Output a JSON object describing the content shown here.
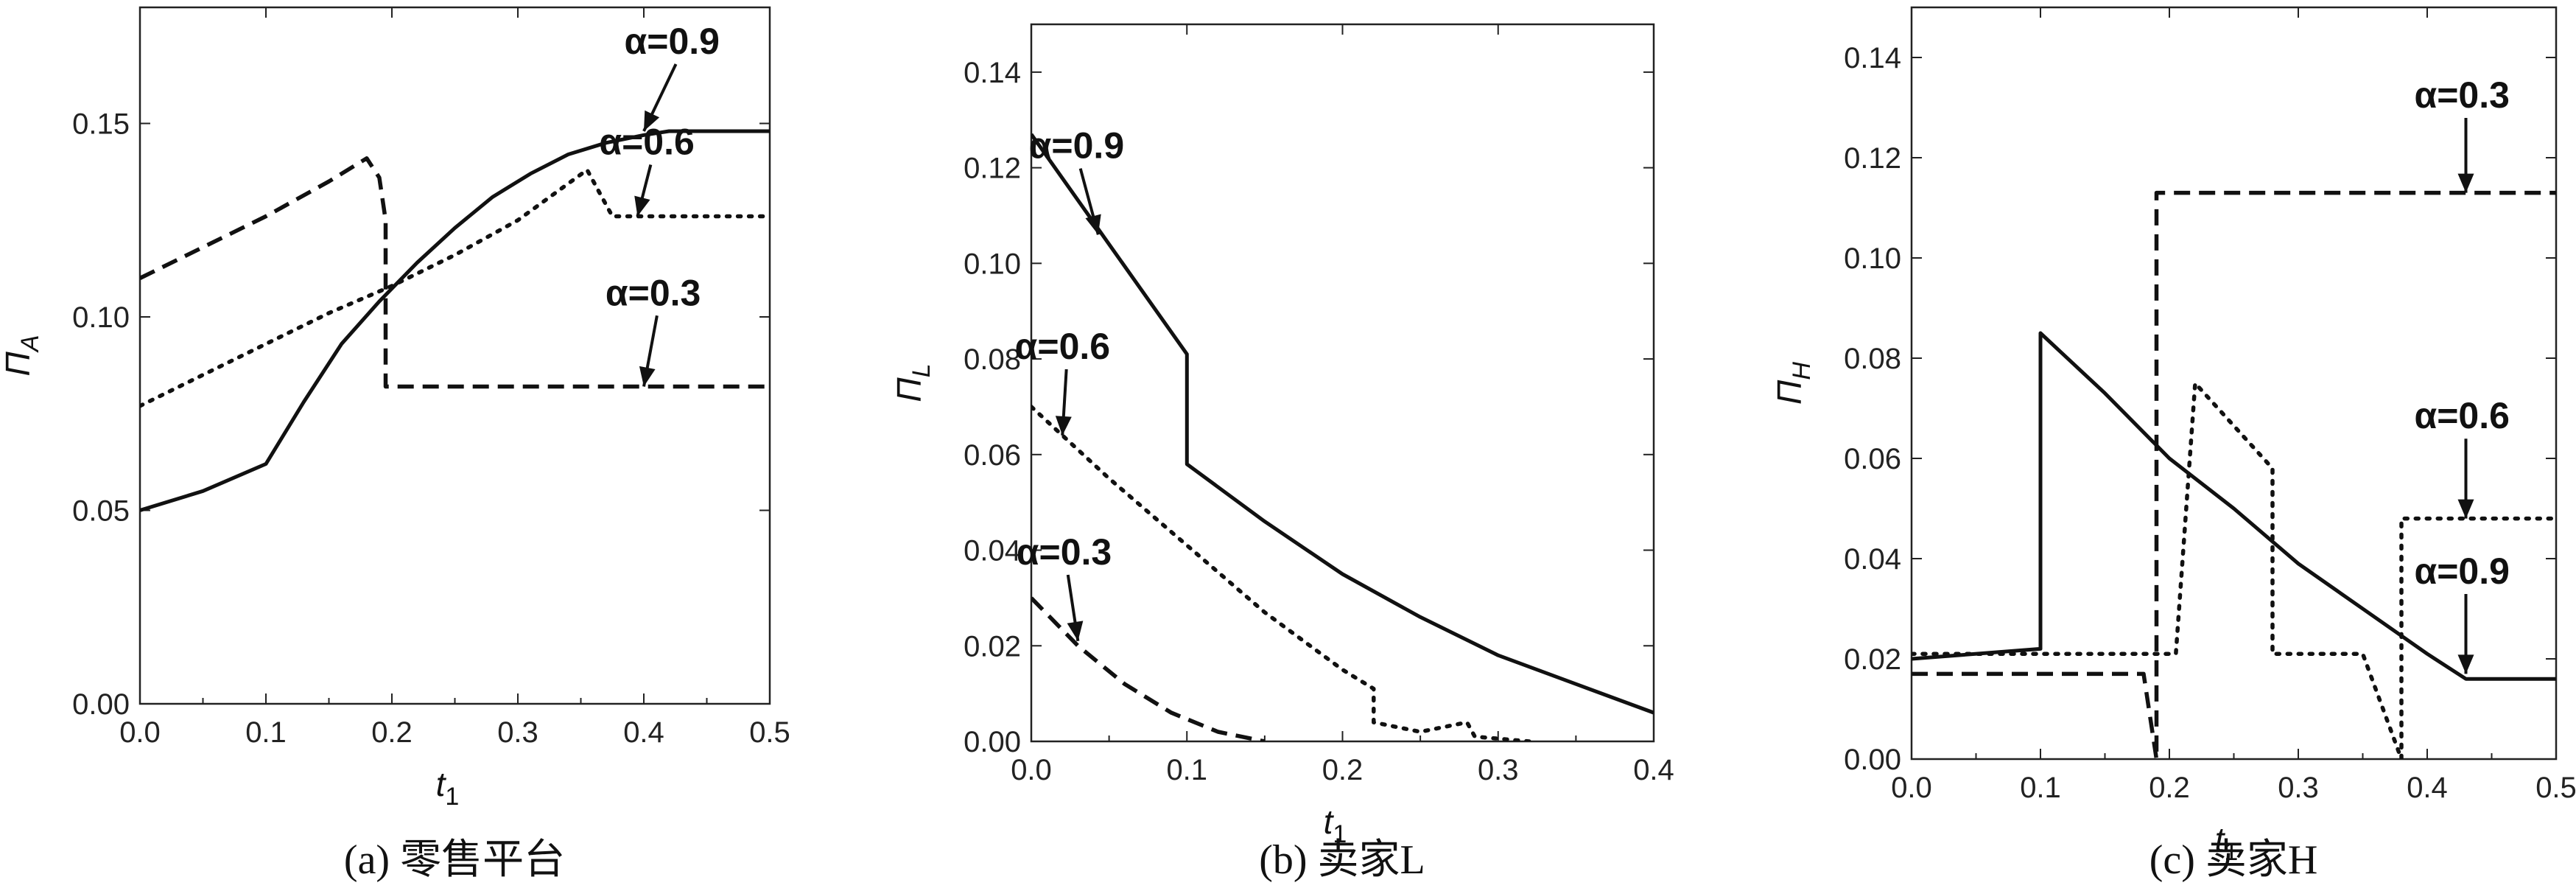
{
  "chart_data": [
    {
      "type": "line",
      "caption": "(a) 零售平台",
      "ylabel": "Π",
      "ylabel_sub": "A",
      "xlabel": "t",
      "xlabel_sub": "1",
      "xlim": [
        0,
        0.5
      ],
      "ylim": [
        0,
        0.18
      ],
      "xticks": [
        "0.0",
        "0.1",
        "0.2",
        "0.3",
        "0.4",
        "0.5"
      ],
      "yticks": [
        "0.00",
        "0.05",
        "0.10",
        "0.15"
      ],
      "series": [
        {
          "name": "α=0.9",
          "style": "solid",
          "points": [
            [
              0,
              0.05
            ],
            [
              0.05,
              0.055
            ],
            [
              0.1,
              0.062
            ],
            [
              0.13,
              0.078
            ],
            [
              0.16,
              0.093
            ],
            [
              0.19,
              0.104
            ],
            [
              0.22,
              0.114
            ],
            [
              0.25,
              0.123
            ],
            [
              0.28,
              0.131
            ],
            [
              0.31,
              0.137
            ],
            [
              0.34,
              0.142
            ],
            [
              0.37,
              0.145
            ],
            [
              0.4,
              0.147
            ],
            [
              0.42,
              0.148
            ],
            [
              0.5,
              0.148
            ]
          ]
        },
        {
          "name": "α=0.6",
          "style": "dotted",
          "points": [
            [
              0,
              0.077
            ],
            [
              0.05,
              0.085
            ],
            [
              0.1,
              0.093
            ],
            [
              0.15,
              0.101
            ],
            [
              0.2,
              0.108
            ],
            [
              0.25,
              0.116
            ],
            [
              0.3,
              0.125
            ],
            [
              0.355,
              0.138
            ],
            [
              0.375,
              0.126
            ],
            [
              0.5,
              0.126
            ]
          ]
        },
        {
          "name": "α=0.3",
          "style": "dashed",
          "points": [
            [
              0,
              0.11
            ],
            [
              0.05,
              0.118
            ],
            [
              0.1,
              0.126
            ],
            [
              0.15,
              0.135
            ],
            [
              0.18,
              0.141
            ],
            [
              0.19,
              0.136
            ],
            [
              0.195,
              0.125
            ],
            [
              0.195,
              0.082
            ],
            [
              0.5,
              0.082
            ]
          ]
        }
      ],
      "annotations": [
        {
          "text": "α=0.9",
          "x": 0.4,
          "y": 0.148,
          "label_x": 0.405,
          "label_y": 0.168
        },
        {
          "text": "α=0.6",
          "x": 0.395,
          "y": 0.126,
          "label_x": 0.385,
          "label_y": 0.142
        },
        {
          "text": "α=0.3",
          "x": 0.4,
          "y": 0.082,
          "label_x": 0.39,
          "label_y": 0.103
        }
      ]
    },
    {
      "type": "line",
      "caption": "(b) 卖家L",
      "ylabel": "Π",
      "ylabel_sub": "L",
      "xlabel": "t",
      "xlabel_sub": "1",
      "xlim": [
        0,
        0.4
      ],
      "ylim": [
        0,
        0.15
      ],
      "xticks": [
        "0.0",
        "0.1",
        "0.2",
        "0.3",
        "0.4"
      ],
      "yticks": [
        "0.00",
        "0.02",
        "0.04",
        "0.06",
        "0.08",
        "0.10",
        "0.12",
        "0.14"
      ],
      "series": [
        {
          "name": "α=0.9",
          "style": "solid",
          "points": [
            [
              0,
              0.127
            ],
            [
              0.05,
              0.104
            ],
            [
              0.1,
              0.081
            ],
            [
              0.1,
              0.058
            ],
            [
              0.15,
              0.046
            ],
            [
              0.2,
              0.035
            ],
            [
              0.25,
              0.026
            ],
            [
              0.3,
              0.018
            ],
            [
              0.35,
              0.012
            ],
            [
              0.4,
              0.006
            ]
          ]
        },
        {
          "name": "α=0.6",
          "style": "dotted",
          "points": [
            [
              0,
              0.07
            ],
            [
              0.05,
              0.055
            ],
            [
              0.1,
              0.041
            ],
            [
              0.15,
              0.027
            ],
            [
              0.2,
              0.015
            ],
            [
              0.22,
              0.011
            ],
            [
              0.22,
              0.004
            ],
            [
              0.25,
              0.002
            ],
            [
              0.28,
              0.004
            ],
            [
              0.285,
              0.001
            ],
            [
              0.32,
              0.0
            ]
          ]
        },
        {
          "name": "α=0.3",
          "style": "dashed",
          "points": [
            [
              0,
              0.03
            ],
            [
              0.03,
              0.02
            ],
            [
              0.06,
              0.012
            ],
            [
              0.09,
              0.006
            ],
            [
              0.12,
              0.002
            ],
            [
              0.15,
              0.0
            ]
          ]
        }
      ],
      "annotations": [
        {
          "text": "α=0.9",
          "x": 0.043,
          "y": 0.106,
          "label_x": 0.015,
          "label_y": 0.122
        },
        {
          "text": "α=0.6",
          "x": 0.02,
          "y": 0.064,
          "label_x": 0.006,
          "label_y": 0.08
        },
        {
          "text": "α=0.3",
          "x": 0.03,
          "y": 0.021,
          "label_x": 0.007,
          "label_y": 0.037
        }
      ]
    },
    {
      "type": "line",
      "caption": "(c) 卖家H",
      "ylabel": "Π",
      "ylabel_sub": "H",
      "xlabel": "t",
      "xlabel_sub": "1",
      "xlim": [
        0,
        0.5
      ],
      "ylim": [
        0,
        0.15
      ],
      "xticks": [
        "0.0",
        "0.1",
        "0.2",
        "0.3",
        "0.4",
        "0.5"
      ],
      "yticks": [
        "0.00",
        "0.02",
        "0.04",
        "0.06",
        "0.08",
        "0.10",
        "0.12",
        "0.14"
      ],
      "series": [
        {
          "name": "α=0.9",
          "style": "solid",
          "points": [
            [
              0,
              0.02
            ],
            [
              0.1,
              0.022
            ],
            [
              0.1,
              0.085
            ],
            [
              0.15,
              0.073
            ],
            [
              0.2,
              0.06
            ],
            [
              0.25,
              0.05
            ],
            [
              0.3,
              0.039
            ],
            [
              0.35,
              0.03
            ],
            [
              0.4,
              0.021
            ],
            [
              0.43,
              0.016
            ],
            [
              0.5,
              0.016
            ]
          ]
        },
        {
          "name": "α=0.6",
          "style": "dotted",
          "points": [
            [
              0,
              0.021
            ],
            [
              0.205,
              0.021
            ],
            [
              0.22,
              0.075
            ],
            [
              0.28,
              0.058
            ],
            [
              0.28,
              0.021
            ],
            [
              0.35,
              0.021
            ],
            [
              0.38,
              0.0
            ],
            [
              0.38,
              0.048
            ],
            [
              0.5,
              0.048
            ]
          ]
        },
        {
          "name": "α=0.3",
          "style": "dashed",
          "points": [
            [
              0,
              0.017
            ],
            [
              0.18,
              0.017
            ],
            [
              0.19,
              0.0
            ],
            [
              0.19,
              0.113
            ],
            [
              0.5,
              0.113
            ]
          ]
        }
      ],
      "annotations": [
        {
          "text": "α=0.3",
          "x": 0.43,
          "y": 0.113,
          "label_x": 0.41,
          "label_y": 0.13
        },
        {
          "text": "α=0.6",
          "x": 0.43,
          "y": 0.048,
          "label_x": 0.41,
          "label_y": 0.066
        },
        {
          "text": "α=0.9",
          "x": 0.43,
          "y": 0.017,
          "label_x": 0.41,
          "label_y": 0.035
        }
      ]
    }
  ]
}
